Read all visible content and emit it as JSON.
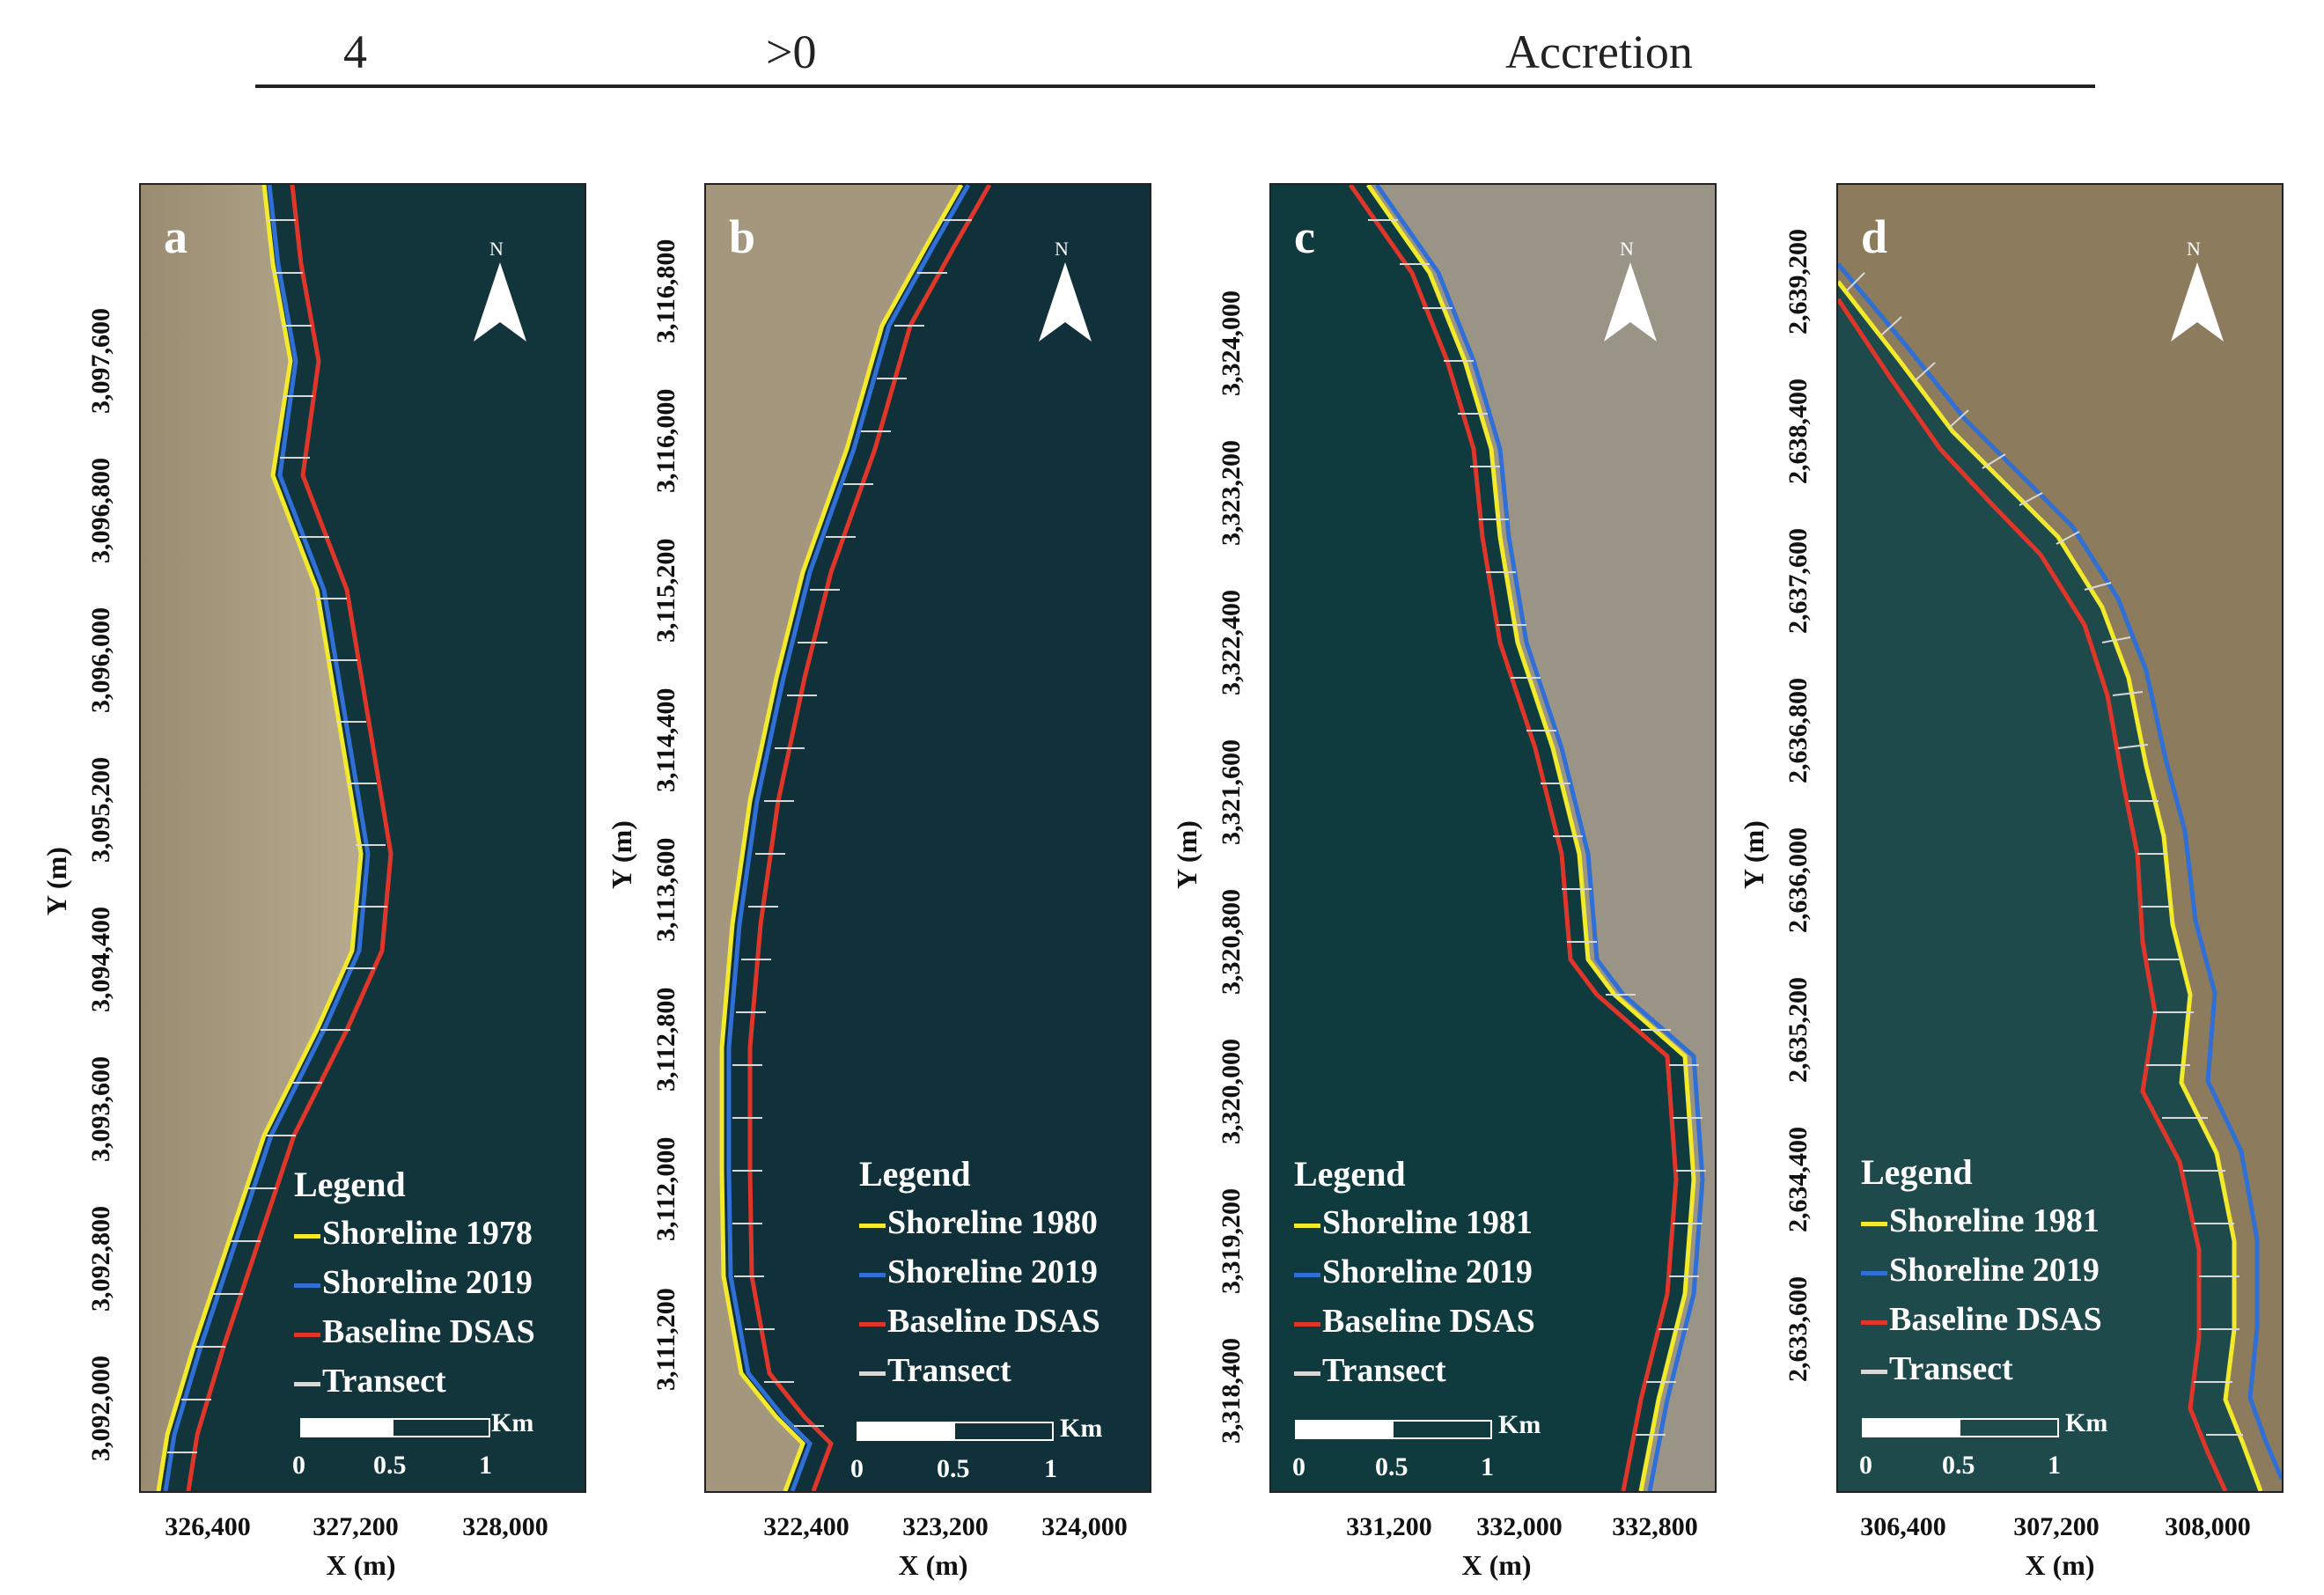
{
  "table_row": {
    "col1": "4",
    "col2": ">0",
    "col3": "Accretion"
  },
  "colors": {
    "shoreline_old": "#f2ea2a",
    "shoreline_2019": "#2f6fd6",
    "baseline": "#e0362a",
    "transect": "#d8d8d8",
    "water": "#0f3840",
    "land": "#a89a7e"
  },
  "panels": [
    {
      "letter": "a",
      "north": "N",
      "legend": {
        "title": "Legend",
        "items": [
          "Shoreline 1978",
          "Shoreline 2019",
          "Baseline DSAS",
          "Transect"
        ]
      },
      "scale": {
        "labels": [
          "0",
          "0.5",
          "1"
        ],
        "unit": "Km"
      },
      "y_ticks": [
        "3,097,600",
        "3,096,800",
        "3,096,000",
        "3,095,200",
        "3,094,400",
        "3,093,600",
        "3,092,800",
        "3,092,000"
      ],
      "x_ticks": [
        "326,400",
        "327,200",
        "328,000"
      ],
      "ylabel": "Y (m)",
      "xlabel": "X (m)"
    },
    {
      "letter": "b",
      "north": "N",
      "legend": {
        "title": "Legend",
        "items": [
          "Shoreline 1980",
          "Shoreline 2019",
          "Baseline DSAS",
          "Transect"
        ]
      },
      "scale": {
        "labels": [
          "0",
          "0.5",
          "1"
        ],
        "unit": "Km"
      },
      "y_ticks": [
        "3,116,800",
        "3,116,000",
        "3,115,200",
        "3,114,400",
        "3,113,600",
        "3,112,800",
        "3,112,000",
        "3,111,200"
      ],
      "x_ticks": [
        "322,400",
        "323,200",
        "324,000"
      ],
      "ylabel": "Y (m)",
      "xlabel": "X (m)"
    },
    {
      "letter": "c",
      "north": "N",
      "legend": {
        "title": "Legend",
        "items": [
          "Shoreline 1981",
          "Shoreline 2019",
          "Baseline DSAS",
          "Transect"
        ]
      },
      "scale": {
        "labels": [
          "0",
          "0.5",
          "1"
        ],
        "unit": "Km"
      },
      "y_ticks": [
        "3,324,000",
        "3,323,200",
        "3,322,400",
        "3,321,600",
        "3,320,800",
        "3,320,000",
        "3,319,200",
        "3,318,400"
      ],
      "x_ticks": [
        "331,200",
        "332,000",
        "332,800"
      ],
      "ylabel": "Y (m)",
      "xlabel": "X (m)"
    },
    {
      "letter": "d",
      "north": "N",
      "legend": {
        "title": "Legend",
        "items": [
          "Shoreline 1981",
          "Shoreline 2019",
          "Baseline DSAS",
          "Transect"
        ]
      },
      "scale": {
        "labels": [
          "0",
          "0.5",
          "1"
        ],
        "unit": "Km"
      },
      "y_ticks": [
        "2,639,200",
        "2,638,400",
        "2,637,600",
        "2,636,800",
        "2,636,000",
        "2,635,200",
        "2,634,400",
        "2,633,600"
      ],
      "x_ticks": [
        "306,400",
        "307,200",
        "308,000"
      ],
      "ylabel": "Y (m)",
      "xlabel": "X (m)"
    }
  ]
}
